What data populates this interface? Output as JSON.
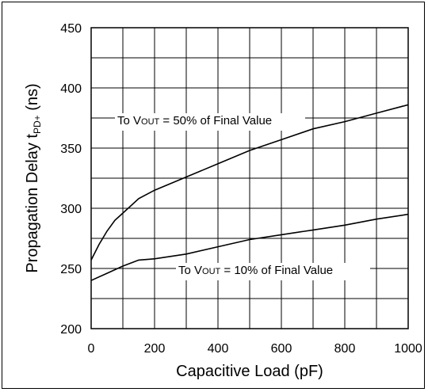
{
  "chart_data": {
    "type": "line",
    "xlabel": "Capacitive Load (pF)",
    "ylabel": {
      "main": "Propagation Delay ",
      "symbol": "t",
      "subscript": "PD+",
      "unit": " (ns)"
    },
    "xlim": [
      0,
      1000
    ],
    "ylim": [
      200,
      450
    ],
    "xticks": [
      0,
      200,
      400,
      600,
      800,
      1000
    ],
    "yticks": [
      200,
      250,
      300,
      350,
      400,
      450
    ],
    "grid": true,
    "series": [
      {
        "label": {
          "prefix": "To V",
          "subscript": "OUT",
          "suffix": " = 50% of Final Value"
        },
        "x": [
          0,
          25,
          50,
          75,
          100,
          150,
          200,
          300,
          400,
          500,
          600,
          700,
          800,
          900,
          1000
        ],
        "y": [
          257,
          270,
          281,
          290,
          296,
          308,
          315,
          326,
          337,
          348,
          357,
          366,
          372,
          379,
          386
        ]
      },
      {
        "label": {
          "prefix": "To V",
          "subscript": "OUT",
          "suffix": " = 10% of Final Value"
        },
        "x": [
          0,
          50,
          100,
          150,
          200,
          300,
          400,
          500,
          600,
          700,
          800,
          900,
          1000
        ],
        "y": [
          240,
          246,
          252,
          257,
          258,
          262,
          268,
          274,
          278,
          282,
          286,
          291,
          295
        ]
      }
    ]
  }
}
